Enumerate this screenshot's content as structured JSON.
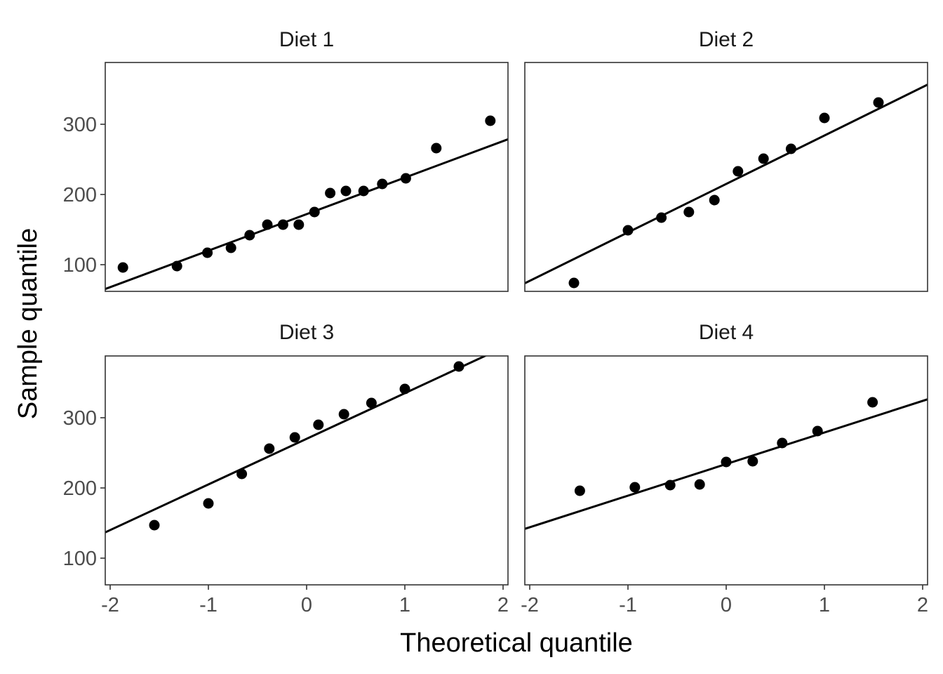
{
  "chart_data": {
    "type": "scatter",
    "xlabel": "Theoretical quantile",
    "ylabel": "Sample quantile",
    "xlim": [
      -2.05,
      2.05
    ],
    "ylim": [
      62,
      388
    ],
    "x_ticks": [
      -2,
      -1,
      0,
      1,
      2
    ],
    "x_tick_labels": [
      "-2",
      "-1",
      "0",
      "1",
      "2"
    ],
    "y_ticks": [
      100,
      200,
      300
    ],
    "y_tick_labels": [
      "100",
      "200",
      "300"
    ],
    "grid": false,
    "panels": [
      {
        "title": "Diet 1",
        "line": {
          "intercept": 172,
          "slope": 52
        },
        "points": [
          {
            "x": -1.87,
            "y": 96
          },
          {
            "x": -1.32,
            "y": 98
          },
          {
            "x": -1.01,
            "y": 117
          },
          {
            "x": -0.77,
            "y": 124
          },
          {
            "x": -0.58,
            "y": 142
          },
          {
            "x": -0.4,
            "y": 157
          },
          {
            "x": -0.24,
            "y": 157
          },
          {
            "x": -0.08,
            "y": 157
          },
          {
            "x": 0.08,
            "y": 175
          },
          {
            "x": 0.24,
            "y": 202
          },
          {
            "x": 0.4,
            "y": 205
          },
          {
            "x": 0.58,
            "y": 205
          },
          {
            "x": 0.77,
            "y": 215
          },
          {
            "x": 1.01,
            "y": 223
          },
          {
            "x": 1.32,
            "y": 266
          },
          {
            "x": 1.87,
            "y": 305
          }
        ]
      },
      {
        "title": "Diet 2",
        "line": {
          "intercept": 215,
          "slope": 69
        },
        "points": [
          {
            "x": -1.55,
            "y": 74
          },
          {
            "x": -1.0,
            "y": 149
          },
          {
            "x": -0.66,
            "y": 167
          },
          {
            "x": -0.38,
            "y": 175
          },
          {
            "x": -0.12,
            "y": 192
          },
          {
            "x": 0.12,
            "y": 233
          },
          {
            "x": 0.38,
            "y": 251
          },
          {
            "x": 0.66,
            "y": 265
          },
          {
            "x": 1.0,
            "y": 309
          },
          {
            "x": 1.55,
            "y": 331
          }
        ]
      },
      {
        "title": "Diet 3",
        "line": {
          "intercept": 270,
          "slope": 65
        },
        "points": [
          {
            "x": -1.55,
            "y": 147
          },
          {
            "x": -1.0,
            "y": 178
          },
          {
            "x": -0.66,
            "y": 220
          },
          {
            "x": -0.38,
            "y": 256
          },
          {
            "x": -0.12,
            "y": 272
          },
          {
            "x": 0.12,
            "y": 290
          },
          {
            "x": 0.38,
            "y": 305
          },
          {
            "x": 0.66,
            "y": 321
          },
          {
            "x": 1.0,
            "y": 341
          },
          {
            "x": 1.55,
            "y": 373
          }
        ]
      },
      {
        "title": "Diet 4",
        "line": {
          "intercept": 234,
          "slope": 45
        },
        "points": [
          {
            "x": -1.49,
            "y": 196
          },
          {
            "x": -0.93,
            "y": 201
          },
          {
            "x": -0.57,
            "y": 204
          },
          {
            "x": -0.27,
            "y": 205
          },
          {
            "x": 0.0,
            "y": 237
          },
          {
            "x": 0.27,
            "y": 238
          },
          {
            "x": 0.57,
            "y": 264
          },
          {
            "x": 0.93,
            "y": 281
          },
          {
            "x": 1.49,
            "y": 322
          }
        ]
      }
    ]
  }
}
